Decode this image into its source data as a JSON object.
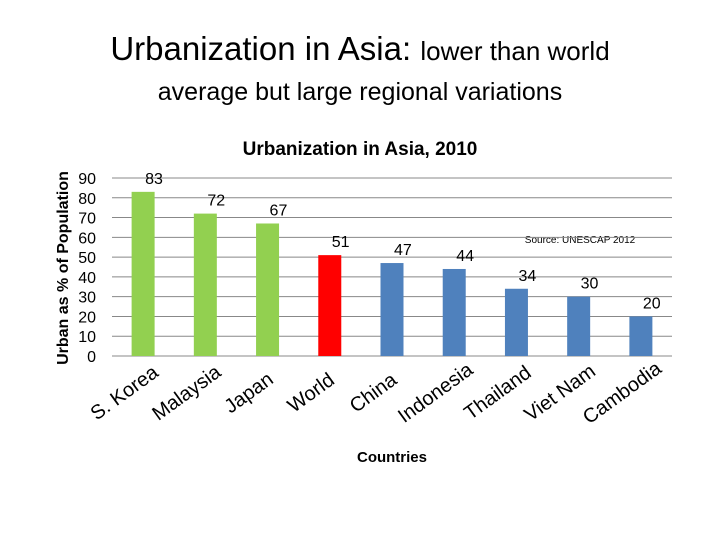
{
  "slide": {
    "title_main": "Urbanization in Asia:",
    "title_main_small": "lower than world",
    "title_sub": "average but large regional variations"
  },
  "chart_data": {
    "type": "bar",
    "title": "Urbanization in Asia, 2010",
    "xlabel": "Countries",
    "ylabel": "Urban as % of Population",
    "ylim": [
      0,
      90
    ],
    "yticks": [
      0,
      10,
      20,
      30,
      40,
      50,
      60,
      70,
      80,
      90
    ],
    "grid": true,
    "categories": [
      "S. Korea",
      "Malaysia",
      "Japan",
      "World",
      "China",
      "Indonesia",
      "Thailand",
      "Viet Nam",
      "Cambodia"
    ],
    "values": [
      83,
      72,
      67,
      51,
      47,
      44,
      34,
      30,
      20
    ],
    "bar_colors": [
      "#92d050",
      "#92d050",
      "#92d050",
      "#ff0000",
      "#4f81bd",
      "#4f81bd",
      "#4f81bd",
      "#4f81bd",
      "#4f81bd"
    ],
    "annotation": "Source: UNESCAP 2012"
  }
}
